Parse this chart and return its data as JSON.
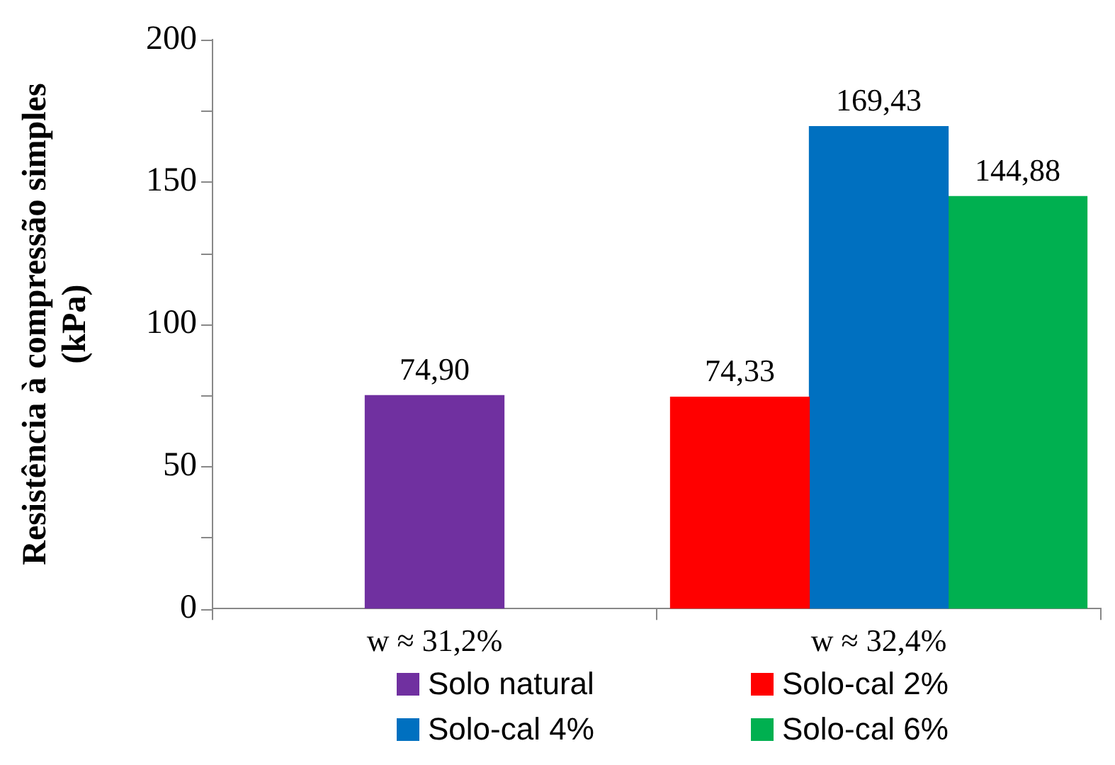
{
  "chart_data": {
    "type": "bar",
    "ylabel": "Resistência à compressão simples (kPa)",
    "categories": [
      "w ≈ 31,2%",
      "w ≈ 32,4%"
    ],
    "series": [
      {
        "name": "Solo natural",
        "color": "#7030a0",
        "values": [
          74.9,
          null
        ],
        "value_labels": [
          "74,90",
          null
        ]
      },
      {
        "name": "Solo-cal 2%",
        "color": "#ff0000",
        "values": [
          null,
          74.33
        ],
        "value_labels": [
          null,
          "74,33"
        ]
      },
      {
        "name": "Solo-cal 4%",
        "color": "#0070c0",
        "values": [
          null,
          169.43
        ],
        "value_labels": [
          null,
          "169,43"
        ]
      },
      {
        "name": "Solo-cal 6%",
        "color": "#00b050",
        "values": [
          null,
          144.88
        ],
        "value_labels": [
          null,
          "144,88"
        ]
      }
    ],
    "ylim": [
      0,
      200
    ],
    "yticks": [
      0,
      {
        "value": 25,
        "label": null
      },
      50,
      {
        "value": 75,
        "label": null
      },
      100,
      {
        "value": 125,
        "label": null
      },
      150,
      {
        "value": 175,
        "label": null
      },
      200
    ],
    "legend": "bottom"
  }
}
